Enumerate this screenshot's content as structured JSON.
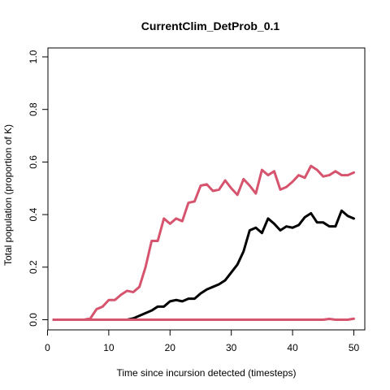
{
  "chart_data": {
    "type": "line",
    "title": "CurrentClim_DetProb_0.1",
    "xlabel": "Time since incursion detected (timesteps)",
    "ylabel": "Total population (proportion of K)",
    "xlim": [
      1,
      50
    ],
    "ylim": [
      0,
      1
    ],
    "xticks": [
      0,
      10,
      20,
      30,
      40,
      50
    ],
    "yticks": [
      0.0,
      0.2,
      0.4,
      0.6,
      0.8,
      1.0
    ],
    "ytick_labels": [
      "0.0",
      "0.2",
      "0.4",
      "0.6",
      "0.8",
      "1.0"
    ],
    "grid": false,
    "legend": "none",
    "x": [
      1,
      2,
      3,
      4,
      5,
      6,
      7,
      8,
      9,
      10,
      11,
      12,
      13,
      14,
      15,
      16,
      17,
      18,
      19,
      20,
      21,
      22,
      23,
      24,
      25,
      26,
      27,
      28,
      29,
      30,
      31,
      32,
      33,
      34,
      35,
      36,
      37,
      38,
      39,
      40,
      41,
      42,
      43,
      44,
      45,
      46,
      47,
      48,
      49,
      50
    ],
    "series": [
      {
        "color": "#d6546e",
        "values": [
          0,
          0,
          0,
          0,
          0,
          0,
          0.005,
          0.04,
          0.05,
          0.075,
          0.075,
          0.095,
          0.11,
          0.105,
          0.125,
          0.2,
          0.3,
          0.3,
          0.385,
          0.365,
          0.385,
          0.375,
          0.445,
          0.45,
          0.51,
          0.515,
          0.49,
          0.495,
          0.53,
          0.5,
          0.475,
          0.535,
          0.51,
          0.48,
          0.57,
          0.55,
          0.565,
          0.495,
          0.505,
          0.525,
          0.55,
          0.54,
          0.585,
          0.57,
          0.545,
          0.55,
          0.565,
          0.55,
          0.55,
          0.56
        ]
      },
      {
        "color": "#000000",
        "values": [
          0,
          0,
          0,
          0,
          0,
          0,
          0,
          0,
          0,
          0,
          0,
          0,
          0,
          0.005,
          0.015,
          0.025,
          0.035,
          0.05,
          0.05,
          0.07,
          0.075,
          0.07,
          0.08,
          0.08,
          0.1,
          0.115,
          0.125,
          0.135,
          0.15,
          0.18,
          0.21,
          0.26,
          0.34,
          0.35,
          0.33,
          0.385,
          0.365,
          0.34,
          0.355,
          0.35,
          0.36,
          0.39,
          0.405,
          0.37,
          0.37,
          0.355,
          0.355,
          0.415,
          0.395,
          0.385
        ]
      },
      {
        "color": "#d6546e",
        "values": [
          0,
          0,
          0,
          0,
          0,
          0,
          0,
          0,
          0,
          0,
          0,
          0,
          0,
          0,
          0,
          0,
          0,
          0,
          0,
          0,
          0,
          0,
          0,
          0,
          0,
          0,
          0,
          0,
          0,
          0,
          0,
          0,
          0,
          0,
          0,
          0,
          0,
          0,
          0,
          0,
          0,
          0,
          0,
          0,
          0,
          0.003,
          0,
          0,
          0,
          0.004
        ]
      }
    ]
  }
}
